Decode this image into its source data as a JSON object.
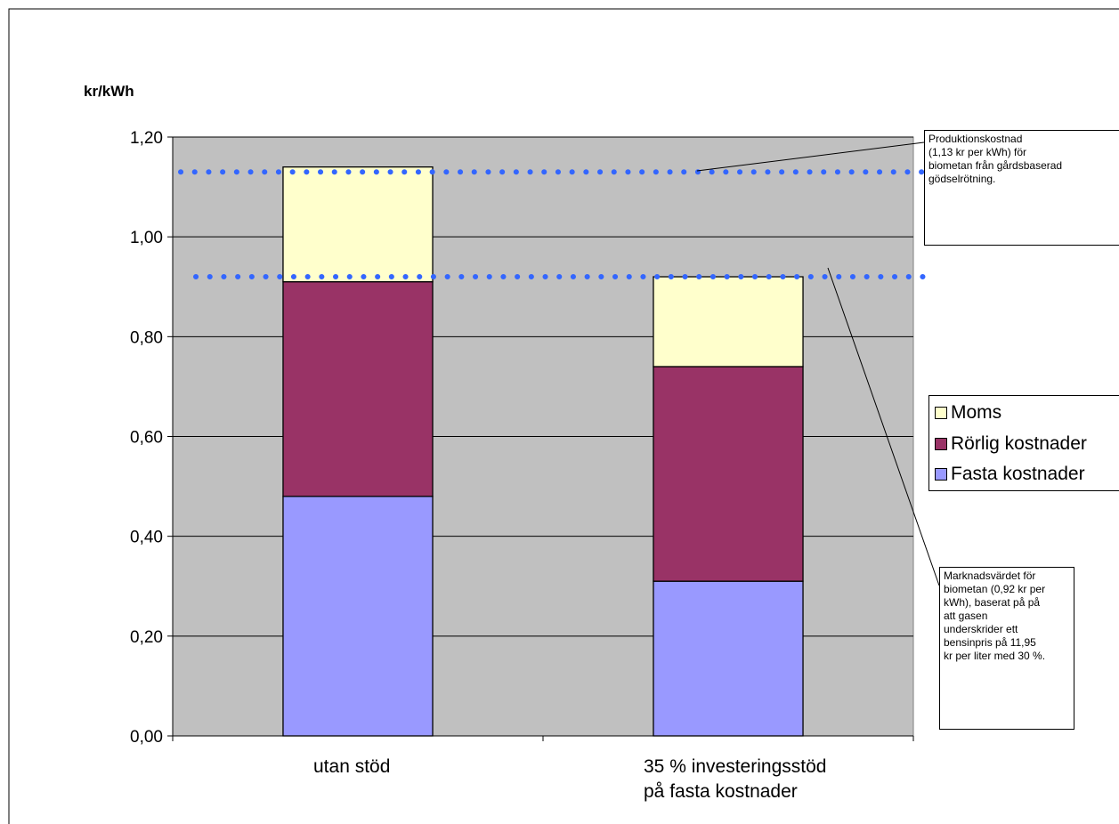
{
  "chart_data": {
    "type": "bar",
    "stacked": true,
    "ylabel": "kr/kWh",
    "ylim": [
      0,
      1.2
    ],
    "yticks": [
      "0,00",
      "0,20",
      "0,40",
      "0,60",
      "0,80",
      "1,00",
      "1,20"
    ],
    "categories": [
      [
        "utan stöd"
      ],
      [
        "35 % investeringsstöd",
        "på fasta kostnader"
      ]
    ],
    "series": [
      {
        "name": "Fasta kostnader",
        "color": "#9999ff",
        "values": [
          0.48,
          0.31
        ]
      },
      {
        "name": "Rörlig kostnader",
        "color": "#993366",
        "values": [
          0.43,
          0.43
        ]
      },
      {
        "name": "Moms",
        "color": "#ffffcc",
        "values": [
          0.23,
          0.18
        ]
      }
    ],
    "reference_lines": [
      {
        "value": 1.13,
        "color": "#3366ff"
      },
      {
        "value": 0.92,
        "color": "#3366ff"
      }
    ],
    "annotations": [
      "Produktionskostnad\n(1,13 kr per kWh) för\nbiometan från gårdsbaserad\ngödselrötning.",
      "Marknadsvärdet för\nbiometan (0,92 kr per\nkWh), baserat på på\natt gasen\nunderskrider ett\nbensinpris på 11,95\nkr per liter med 30 %."
    ],
    "grid": true,
    "plot_background": "#c0c0c0",
    "legend_position": "right"
  }
}
